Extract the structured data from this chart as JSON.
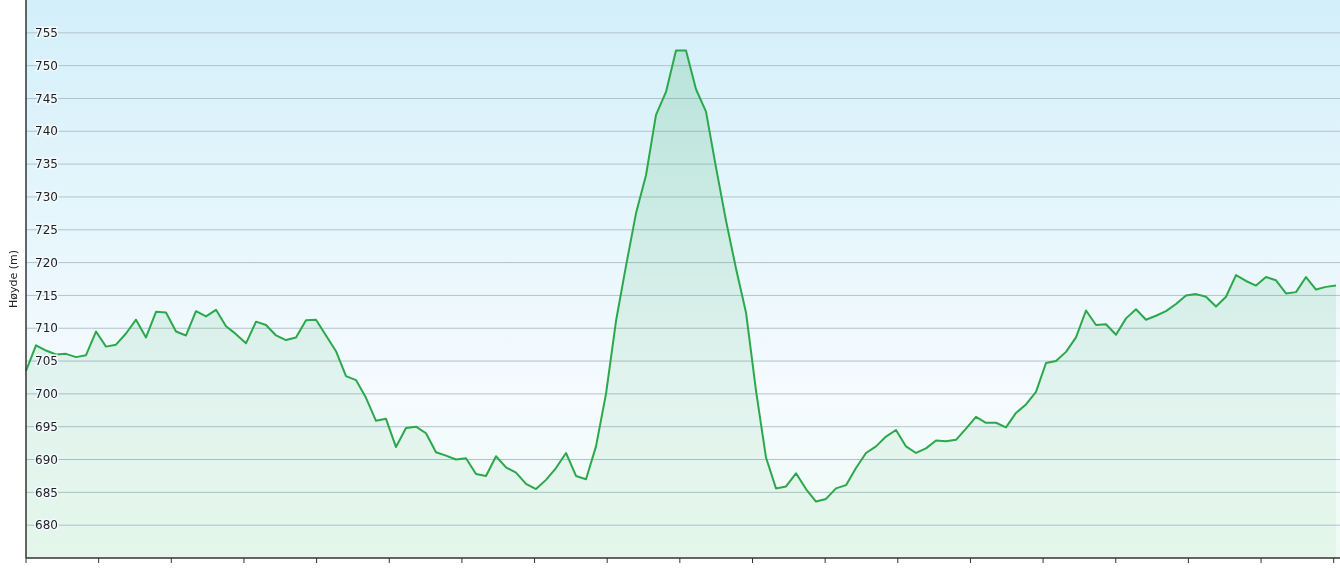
{
  "chart_data": {
    "type": "area",
    "ylabel": "Høyde (m)",
    "ylim": [
      675,
      760
    ],
    "yticks": [
      680,
      685,
      690,
      695,
      700,
      705,
      710,
      715,
      720,
      725,
      730,
      735,
      740,
      745,
      750,
      755
    ],
    "grid": "y",
    "tick_labels": "y",
    "categories": [
      null,
      null,
      null,
      null,
      null,
      null,
      null,
      null,
      null,
      null,
      null,
      null,
      null,
      null,
      null,
      null,
      null,
      null,
      null,
      null,
      null,
      null,
      null,
      null,
      null,
      null,
      null,
      null,
      null,
      null,
      null,
      null,
      null,
      null,
      null,
      null,
      null,
      null,
      null,
      null,
      null,
      null,
      null,
      null,
      null,
      null,
      null,
      null,
      null,
      null,
      null,
      null,
      null,
      null,
      null,
      null,
      null,
      null,
      null,
      null,
      null,
      null,
      null,
      null,
      null,
      null,
      null,
      null,
      null,
      null,
      null,
      null,
      null,
      null,
      null,
      null,
      null,
      null,
      null,
      null,
      null,
      null,
      null,
      null,
      null,
      null,
      null,
      null,
      null,
      null,
      null,
      null,
      null,
      null,
      null,
      null,
      null,
      null,
      null,
      null,
      null,
      null,
      null,
      null,
      null,
      null,
      null,
      null,
      null,
      null,
      null,
      null,
      null,
      null,
      null,
      null,
      null,
      null,
      null,
      null,
      null,
      null,
      null,
      null,
      null,
      null,
      null,
      null,
      null,
      null,
      null,
      null
    ],
    "series": [
      {
        "color": "#2ca84c",
        "values": [
          703.5,
          707.4,
          706.6,
          706,
          706.1,
          705.6,
          705.9,
          709.5,
          707.2,
          707.5,
          709.2,
          711.3,
          708.6,
          712.5,
          712.4,
          709.5,
          708.9,
          712.6,
          711.8,
          712.8,
          710.3,
          709.1,
          707.7,
          711,
          710.5,
          708.9,
          708.2,
          708.6,
          711.2,
          711.3,
          708.9,
          706.5,
          702.7,
          702.1,
          699.4,
          695.9,
          696.2,
          691.9,
          694.8,
          695,
          694,
          691.1,
          690.6,
          690,
          690.2,
          687.8,
          687.5,
          690.5,
          688.8,
          688,
          686.3,
          685.5,
          686.9,
          688.7,
          691,
          687.5,
          687,
          692,
          700,
          711.1,
          719.5,
          727.5,
          733.3,
          742.5,
          746,
          752.3,
          752.3,
          746.4,
          743,
          734.5,
          726.4,
          719.1,
          712.4,
          700.5,
          690.3,
          685.6,
          685.9,
          687.9,
          685.5,
          683.6,
          684,
          685.6,
          686.1,
          688.7,
          691,
          692,
          693.5,
          694.5,
          692,
          691,
          691.7,
          692.9,
          692.8,
          693,
          694.7,
          696.5,
          695.6,
          695.6,
          694.9,
          697.1,
          698.4,
          700.3,
          704.7,
          705,
          706.4,
          708.6,
          712.7,
          710.5,
          710.6,
          709,
          711.5,
          712.9,
          711.3,
          711.9,
          712.6,
          713.7,
          715,
          715.2,
          714.8,
          713.3,
          714.8,
          718.1,
          717.2,
          716.5,
          717.8,
          717.3,
          715.3,
          715.5,
          717.8,
          715.9,
          716.3,
          716.5
        ]
      }
    ]
  }
}
